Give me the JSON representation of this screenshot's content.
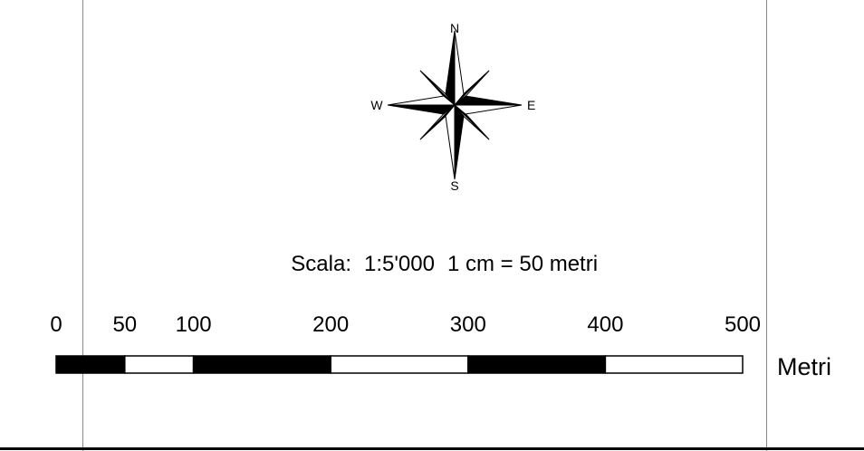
{
  "compass": {
    "north": "N",
    "east": "E",
    "south": "S",
    "west": "W"
  },
  "scale": {
    "label": "Scala:",
    "ratio": "1:5'000",
    "equivalence": "1 cm = 50 metri"
  },
  "scalebar": {
    "units": "Metri",
    "ticks": [
      "0",
      "50",
      "100",
      "200",
      "300",
      "400",
      "500"
    ],
    "segments": [
      {
        "from": 0,
        "to": 50,
        "fill": "black"
      },
      {
        "from": 50,
        "to": 100,
        "fill": "white"
      },
      {
        "from": 100,
        "to": 200,
        "fill": "black"
      },
      {
        "from": 200,
        "to": 300,
        "fill": "white"
      },
      {
        "from": 300,
        "to": 400,
        "fill": "black"
      },
      {
        "from": 400,
        "to": 500,
        "fill": "white"
      }
    ]
  }
}
